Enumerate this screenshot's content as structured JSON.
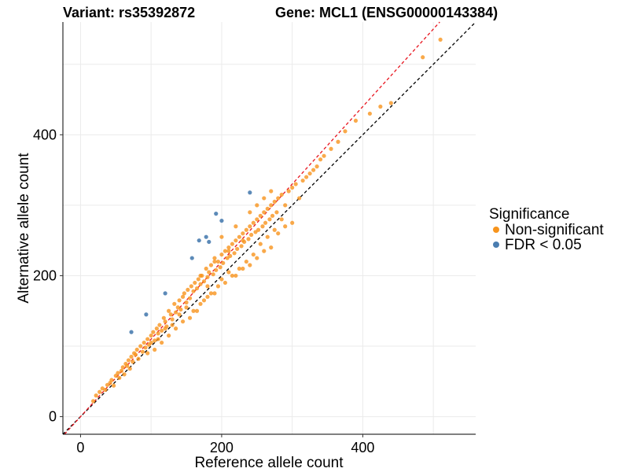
{
  "chart_data": {
    "type": "scatter",
    "title_left": "Variant: rs35392872",
    "title_right": "Gene: MCL1 (ENSG00000143384)",
    "xlabel": "Reference allele count",
    "ylabel": "Alternative allele count",
    "xlim": [
      -25,
      560
    ],
    "ylim": [
      -25,
      560
    ],
    "x_ticks": [
      0,
      200,
      400
    ],
    "y_ticks": [
      0,
      200,
      400
    ],
    "grid": true,
    "legend": {
      "title": "Significance",
      "position": "right",
      "entries": [
        {
          "label": "Non-significant",
          "color": "#F7941D"
        },
        {
          "label": "FDR < 0.05",
          "color": "#4A7DB0"
        }
      ]
    },
    "reference_lines": [
      {
        "name": "identity",
        "slope": 1.0,
        "intercept": 0,
        "color": "#000000"
      },
      {
        "name": "fit",
        "slope": 1.1,
        "intercept": 0,
        "color": "#E8141E"
      }
    ],
    "series": [
      {
        "label": "Non-significant",
        "color": "#F7941D",
        "x": [
          18,
          22,
          27,
          31,
          35,
          38,
          42,
          44,
          47,
          50,
          53,
          55,
          58,
          60,
          62,
          64,
          66,
          68,
          70,
          72,
          74,
          76,
          78,
          80,
          82,
          85,
          88,
          90,
          92,
          95,
          97,
          100,
          103,
          105,
          108,
          110,
          112,
          115,
          118,
          120,
          122,
          125,
          128,
          130,
          133,
          135,
          138,
          140,
          142,
          145,
          147,
          150,
          152,
          155,
          157,
          160,
          162,
          165,
          167,
          170,
          172,
          175,
          178,
          180,
          182,
          185,
          188,
          190,
          192,
          195,
          198,
          200,
          202,
          205,
          208,
          210,
          212,
          215,
          218,
          220,
          222,
          225,
          228,
          230,
          232,
          235,
          238,
          240,
          242,
          245,
          248,
          250,
          252,
          255,
          258,
          260,
          262,
          265,
          268,
          270,
          272,
          275,
          278,
          280,
          285,
          290,
          295,
          300,
          305,
          310,
          315,
          320,
          325,
          330,
          335,
          340,
          345,
          355,
          365,
          375,
          390,
          410,
          425,
          440,
          485,
          510,
          150,
          160,
          170,
          180,
          190,
          200,
          210,
          220,
          230,
          240,
          250,
          260,
          270,
          280,
          290,
          300,
          140,
          130,
          120,
          110,
          100,
          180,
          195,
          205,
          215,
          225,
          235,
          245,
          255,
          265,
          275,
          285,
          175,
          185,
          165,
          155,
          145,
          135,
          125,
          115,
          105,
          95,
          230,
          210,
          190,
          170,
          250,
          270,
          260,
          240,
          220,
          200
        ],
        "y": [
          22,
          30,
          35,
          40,
          38,
          45,
          48,
          52,
          44,
          58,
          62,
          55,
          65,
          70,
          60,
          75,
          72,
          80,
          68,
          85,
          78,
          90,
          88,
          95,
          82,
          100,
          92,
          105,
          98,
          110,
          102,
          115,
          120,
          108,
          125,
          118,
          130,
          122,
          140,
          135,
          128,
          150,
          145,
          138,
          160,
          148,
          155,
          165,
          152,
          170,
          175,
          162,
          180,
          168,
          185,
          178,
          190,
          182,
          195,
          188,
          200,
          192,
          210,
          198,
          205,
          215,
          202,
          225,
          208,
          220,
          212,
          230,
          218,
          235,
          225,
          240,
          228,
          245,
          232,
          250,
          238,
          255,
          242,
          260,
          248,
          265,
          252,
          270,
          258,
          275,
          262,
          280,
          265,
          285,
          270,
          290,
          275,
          295,
          280,
          300,
          285,
          305,
          290,
          310,
          315,
          300,
          320,
          325,
          330,
          310,
          335,
          340,
          345,
          350,
          355,
          365,
          370,
          380,
          390,
          405,
          420,
          430,
          440,
          445,
          510,
          535,
          155,
          150,
          160,
          185,
          175,
          195,
          205,
          200,
          210,
          215,
          225,
          235,
          240,
          260,
          270,
          275,
          145,
          130,
          125,
          110,
          105,
          170,
          185,
          190,
          200,
          210,
          220,
          230,
          245,
          255,
          265,
          280,
          165,
          175,
          150,
          140,
          135,
          125,
          115,
          105,
          95,
          90,
          250,
          235,
          220,
          200,
          300,
          320,
          310,
          290,
          270,
          255
        ]
      },
      {
        "label": "FDR < 0.05",
        "color": "#4A7DB0",
        "x": [
          72,
          93,
          120,
          158,
          168,
          178,
          182,
          192,
          200,
          240
        ],
        "y": [
          120,
          145,
          175,
          225,
          250,
          255,
          248,
          288,
          278,
          318
        ]
      }
    ]
  }
}
